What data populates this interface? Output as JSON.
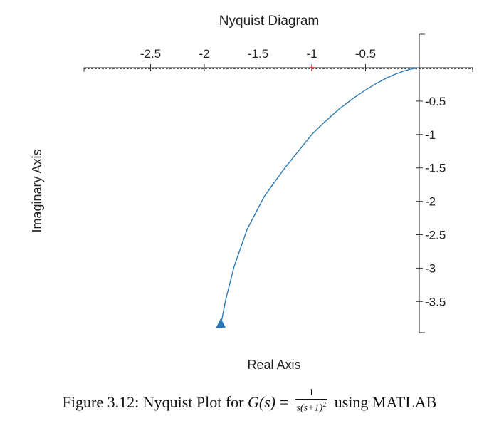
{
  "chart_data": {
    "type": "line",
    "title": "Nyquist Diagram",
    "xlabel": "Real Axis",
    "ylabel": "Imaginary Axis",
    "xlim": [
      -3.1,
      0.5
    ],
    "ylim": [
      -4.0,
      0.5
    ],
    "x_ticks": [
      -2.5,
      -2,
      -1.5,
      -1,
      -0.5
    ],
    "x_tick_labels": [
      "-2.5",
      "-2",
      "-1.5",
      "-1",
      "-0.5"
    ],
    "y_ticks": [
      -0.5,
      -1,
      -1.5,
      -2,
      -2.5,
      -3,
      -3.5
    ],
    "y_tick_labels": [
      "-0.5",
      "-1",
      "-1.5",
      "-2",
      "-2.5",
      "-3",
      "-3.5"
    ],
    "critical_point": {
      "x": -1,
      "y": 0
    },
    "series": [
      {
        "name": "G(s) = 1/(s(s+1)^2)",
        "color": "#2a7ab8",
        "x": [
          -1.8464,
          -1.7985,
          -1.7241,
          -1.6026,
          -1.44,
          -1.25,
          -1.0,
          -0.885,
          -0.7499,
          -0.6154,
          -0.5,
          -0.4,
          -0.3076,
          -0.2241,
          -0.1509,
          -0.0932,
          -0.0492,
          -0.0164,
          -0.0054
        ],
        "y": [
          -3.8464,
          -3.4594,
          -2.9826,
          -2.423,
          -1.92,
          -1.4977,
          -1.0,
          -0.8183,
          -0.6248,
          -0.459,
          -0.3333,
          -0.2369,
          -0.1562,
          -0.0968,
          -0.0543,
          -0.027,
          -0.0111,
          -0.0024,
          -0.0005
        ]
      }
    ],
    "arrow": {
      "x": -1.8464,
      "y": -3.8464,
      "direction": "up"
    }
  },
  "caption": {
    "prefix": "Figure 3.12: Nyquist Plot for ",
    "func": "G(s)",
    "equals": " = ",
    "numerator": "1",
    "denominator": "s(s+1)",
    "den_power": "2",
    "suffix": " using MATLAB"
  }
}
